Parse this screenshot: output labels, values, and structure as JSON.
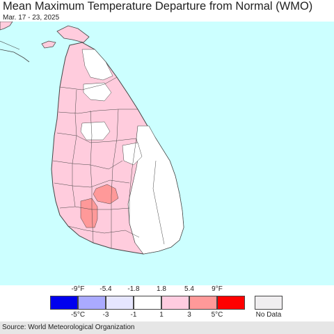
{
  "header": {
    "title": "Mean Maximum Temperature Departure from Normal (WMO)",
    "date_range": "Mar. 17 - 23, 2025"
  },
  "colors": {
    "ocean": "#ccffff",
    "land_white": "#ffffff",
    "land_pink": "#ffccdd",
    "land_salmon": "#ff9999",
    "border": "#444444"
  },
  "legend": {
    "fahrenheit_labels": [
      "-9°F",
      "-5.4",
      "-1.8",
      "1.8",
      "5.4",
      "9°F"
    ],
    "celsius_labels": [
      "-5°C",
      "-3",
      "-1",
      "1",
      "3",
      "5°C"
    ],
    "swatches": [
      "#0000ee",
      "#aaaaff",
      "#e6e6ff",
      "#ffffff",
      "#ffcce0",
      "#ff9999",
      "#ff0000"
    ],
    "no_data_label": "No Data",
    "no_data_color": "#f0eef0"
  },
  "footer": {
    "source": "Source: World Meteorological Organization"
  }
}
